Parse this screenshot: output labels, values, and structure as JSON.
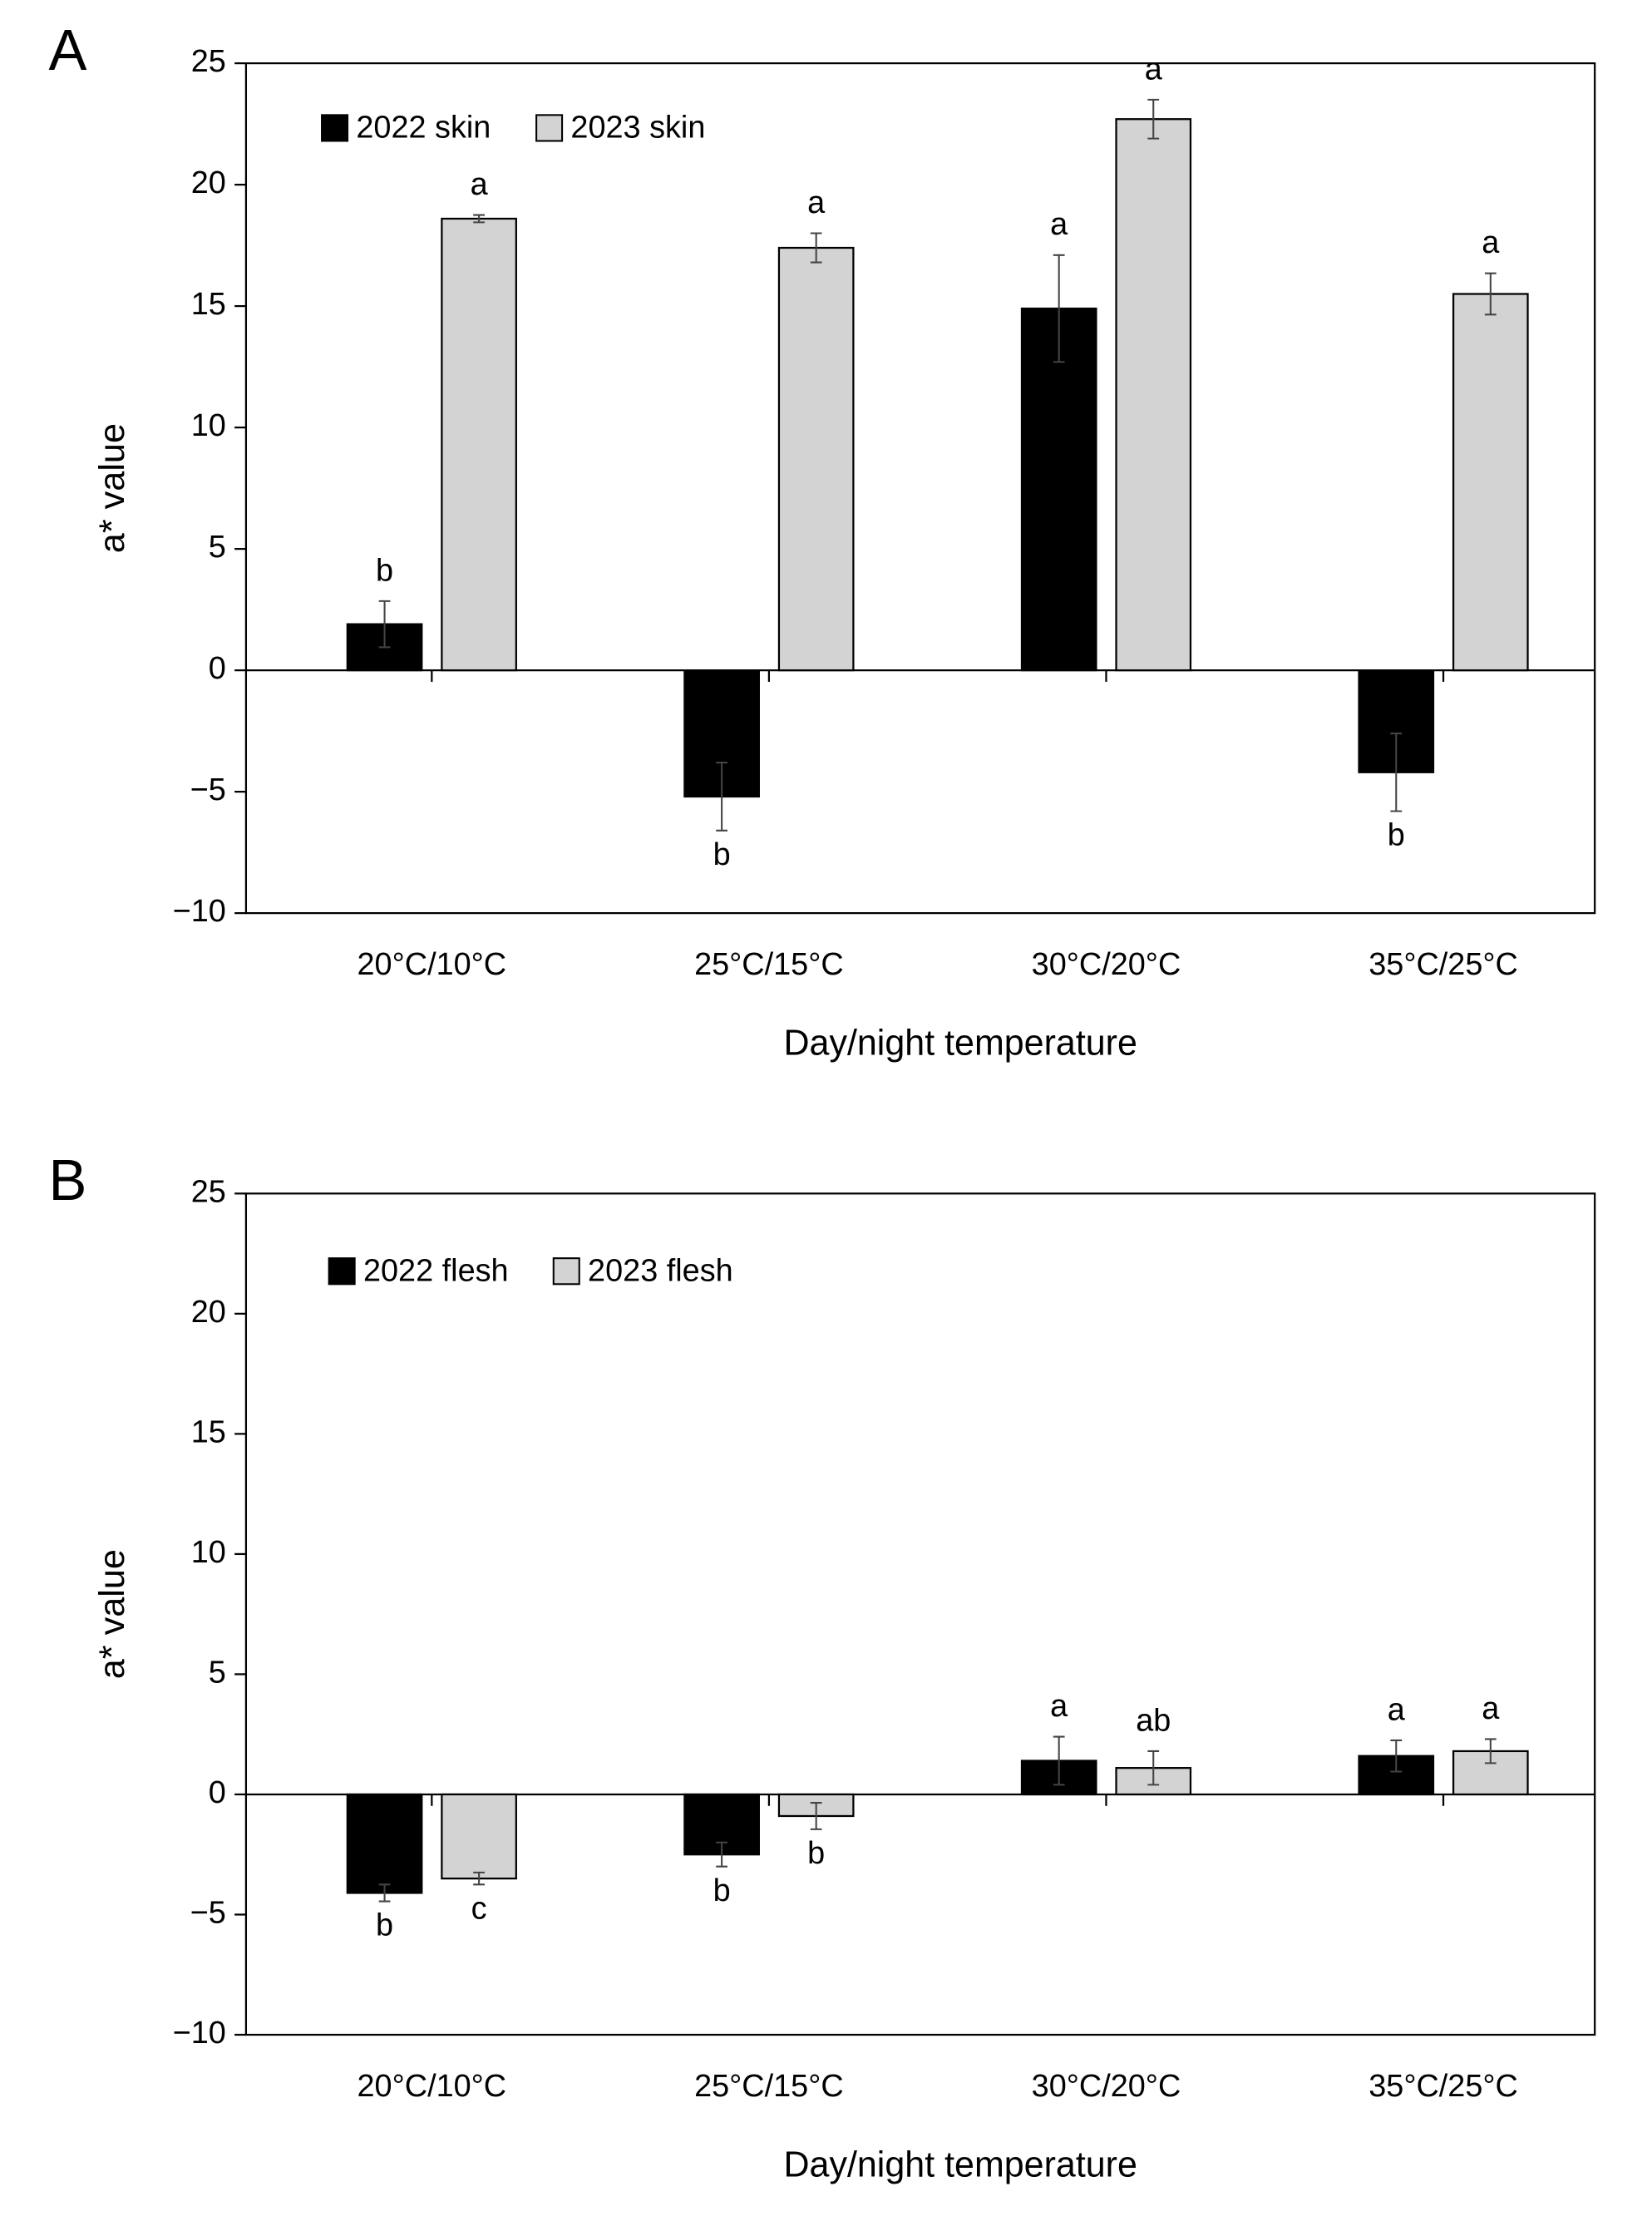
{
  "chart_data": [
    {
      "type": "bar",
      "panel_label": "A",
      "ylabel": "a* value",
      "xlabel": "Day/night temperature",
      "categories": [
        "20°C/10°C",
        "25°C/15°C",
        "30°C/20°C",
        "35°C/25°C"
      ],
      "series": [
        {
          "name": "2022 skin",
          "color": "#000000",
          "values": [
            1.9,
            -5.2,
            14.9,
            -4.2
          ],
          "errors": [
            0.95,
            1.4,
            2.2,
            1.6
          ],
          "letters": [
            "b",
            "b",
            "a",
            "b"
          ]
        },
        {
          "name": "2023 skin",
          "color": "#d3d3d3",
          "values": [
            18.6,
            17.4,
            22.7,
            15.5
          ],
          "errors": [
            0.15,
            0.6,
            0.8,
            0.85
          ],
          "letters": [
            "a",
            "a",
            "a",
            "a"
          ]
        }
      ],
      "ylim": [
        -10,
        25
      ],
      "yticks": [
        {
          "value": -10,
          "label": "−10"
        },
        {
          "value": -5,
          "label": "−5"
        },
        0,
        5,
        10,
        15,
        20,
        25
      ],
      "legend": "upper left"
    },
    {
      "type": "bar",
      "panel_label": "B",
      "ylabel": "a* value",
      "xlabel": "Day/night temperature",
      "categories": [
        "20°C/10°C",
        "25°C/15°C",
        "30°C/20°C",
        "35°C/25°C"
      ],
      "series": [
        {
          "name": "2022 flesh",
          "color": "#000000",
          "values": [
            -4.1,
            -2.5,
            1.4,
            1.6
          ],
          "errors": [
            0.35,
            0.5,
            1.0,
            0.65
          ],
          "letters": [
            "b",
            "b",
            "a",
            "a"
          ]
        },
        {
          "name": "2023 flesh",
          "color": "#d3d3d3",
          "values": [
            -3.5,
            -0.9,
            1.1,
            1.8
          ],
          "errors": [
            0.25,
            0.55,
            0.7,
            0.5
          ],
          "letters": [
            "c",
            "b",
            "ab",
            "a"
          ]
        }
      ],
      "ylim": [
        -10,
        25
      ],
      "yticks": [
        {
          "value": -10,
          "label": "−10"
        },
        {
          "value": -5,
          "label": "−5"
        },
        0,
        5,
        10,
        15,
        20,
        25
      ],
      "legend": "upper left"
    }
  ]
}
